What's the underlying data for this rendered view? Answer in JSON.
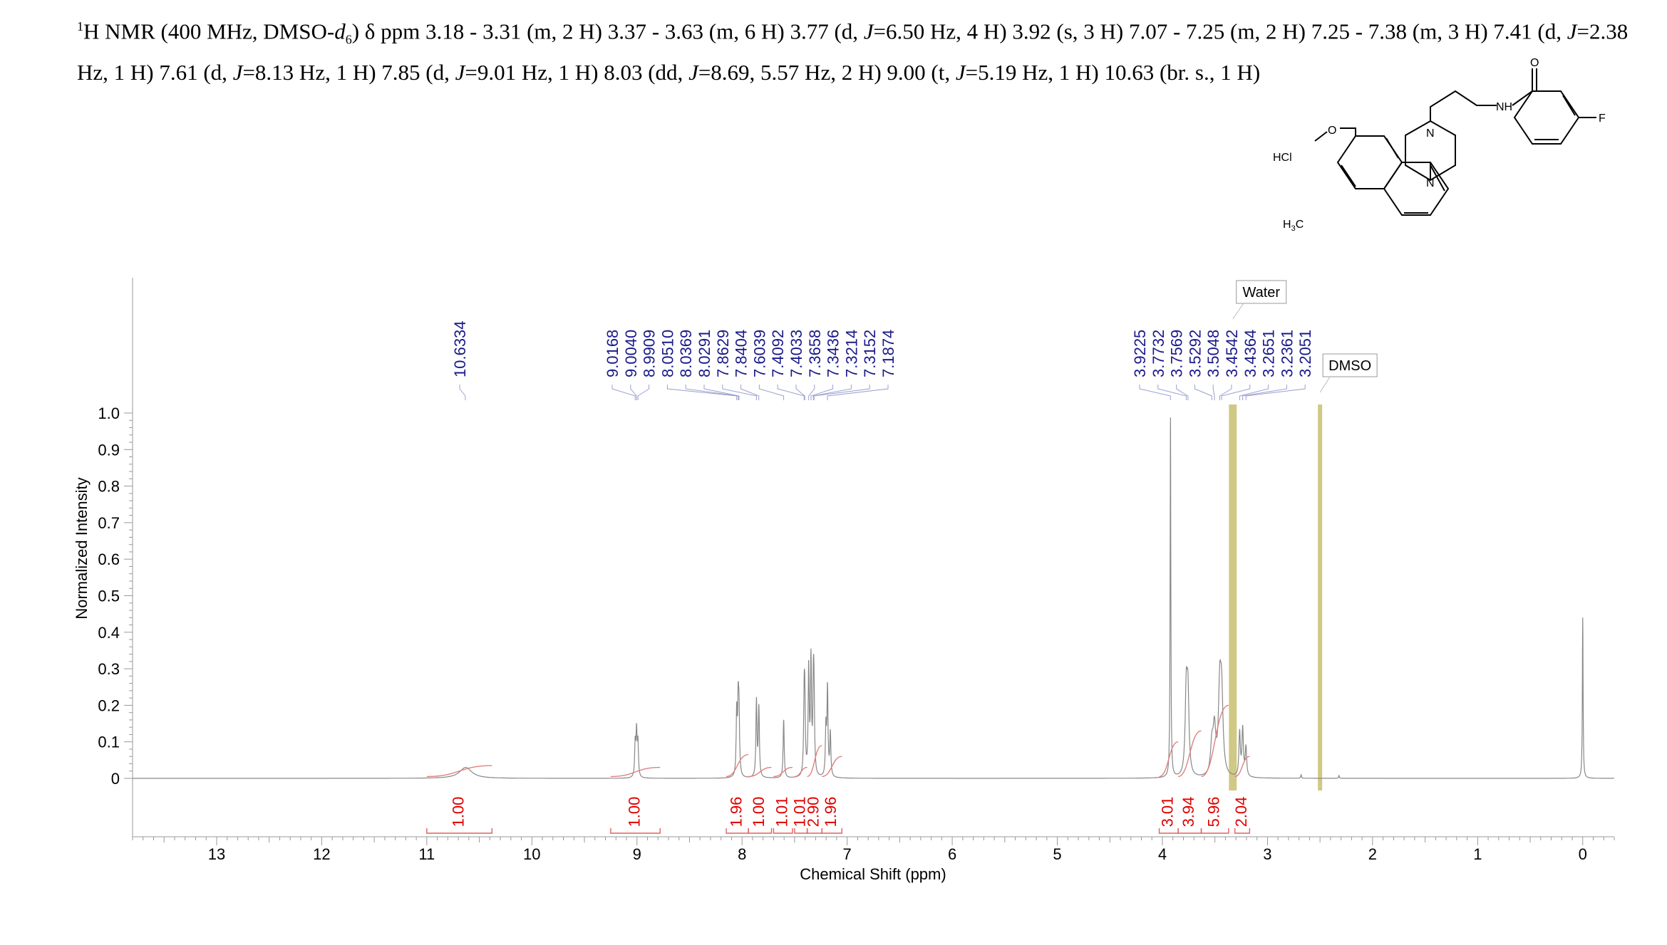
{
  "header": {
    "nucleus_mass": "1",
    "nucleus": "H NMR",
    "conditions": "(400 MHz, DMSO-",
    "solvent_d": "d",
    "solvent_sub": "6",
    "close": ")",
    "delta": "δ",
    "segments": [
      {
        "t": " ppm 3.18 - 3.31 (m, 2 H) 3.37 - 3.63 (m, 6 H) 3.77 (d, "
      },
      {
        "t": "J",
        "i": true
      },
      {
        "t": "=6.50 Hz, 4 H) 3.92 (s, 3 H) 7.07 - 7.25 (m, 2 H) 7.25 - 7.38 (m, 3 H) 7.41 (d, "
      },
      {
        "t": "J",
        "i": true
      },
      {
        "t": "=2.38 Hz, 1 H) 7.61 (d, "
      },
      {
        "t": "J",
        "i": true
      },
      {
        "t": "=8.13 Hz, 1 H) 7.85 (d, "
      },
      {
        "t": "J",
        "i": true
      },
      {
        "t": "=9.01 Hz, 1 H) 8.03 (dd, "
      },
      {
        "t": "J",
        "i": true
      },
      {
        "t": "=8.69, 5.57 Hz, 2 H) 9.00 (t, "
      },
      {
        "t": "J",
        "i": true
      },
      {
        "t": "=5.19 Hz, 1 H) 10.63 (br. s., 1 H)"
      }
    ]
  },
  "molecule": {
    "labels": {
      "nh": "NH",
      "o": "O",
      "f": "F",
      "n_top": "N",
      "n_bottom": "N",
      "hcl": "HCl",
      "o_methoxy": "O",
      "h3c": "H",
      "h3c_sub": "3",
      "h3c_c": "C"
    }
  },
  "chart_data": {
    "type": "line",
    "xlabel": "Chemical Shift (ppm)",
    "ylabel": "Normalized Intensity",
    "xlim": [
      13.8,
      -0.3
    ],
    "ylim": [
      -0.15,
      1.05
    ],
    "x_ticks": [
      13,
      12,
      11,
      10,
      9,
      8,
      7,
      6,
      5,
      4,
      3,
      2,
      1,
      0
    ],
    "y_ticks": [
      0,
      0.1,
      0.2,
      0.3,
      0.4,
      0.5,
      0.6,
      0.7,
      0.8,
      0.9,
      1.0
    ],
    "y_tick_labels": [
      "0",
      "0.1",
      "0.2",
      "0.3",
      "0.4",
      "0.5",
      "0.6",
      "0.7",
      "0.8",
      "0.9",
      "1.0"
    ],
    "peaks": [
      {
        "x": 10.63,
        "y": 0.03,
        "w": 0.07
      },
      {
        "x": 9.017,
        "y": 0.09,
        "w": 0.006
      },
      {
        "x": 9.004,
        "y": 0.12,
        "w": 0.006
      },
      {
        "x": 8.991,
        "y": 0.09,
        "w": 0.006
      },
      {
        "x": 8.051,
        "y": 0.17,
        "w": 0.006
      },
      {
        "x": 8.037,
        "y": 0.18,
        "w": 0.006
      },
      {
        "x": 8.029,
        "y": 0.16,
        "w": 0.006
      },
      {
        "x": 7.863,
        "y": 0.21,
        "w": 0.006
      },
      {
        "x": 7.84,
        "y": 0.19,
        "w": 0.006
      },
      {
        "x": 7.604,
        "y": 0.16,
        "w": 0.006
      },
      {
        "x": 7.409,
        "y": 0.19,
        "w": 0.006
      },
      {
        "x": 7.403,
        "y": 0.17,
        "w": 0.006
      },
      {
        "x": 7.366,
        "y": 0.29,
        "w": 0.006
      },
      {
        "x": 7.344,
        "y": 0.31,
        "w": 0.006
      },
      {
        "x": 7.321,
        "y": 0.22,
        "w": 0.006
      },
      {
        "x": 7.315,
        "y": 0.17,
        "w": 0.006
      },
      {
        "x": 7.202,
        "y": 0.13,
        "w": 0.006
      },
      {
        "x": 7.187,
        "y": 0.24,
        "w": 0.006
      },
      {
        "x": 7.16,
        "y": 0.12,
        "w": 0.006
      },
      {
        "x": 3.923,
        "y": 1.0,
        "w": 0.004
      },
      {
        "x": 3.773,
        "y": 0.22,
        "w": 0.012
      },
      {
        "x": 3.757,
        "y": 0.21,
        "w": 0.012
      },
      {
        "x": 3.529,
        "y": 0.08,
        "w": 0.015
      },
      {
        "x": 3.505,
        "y": 0.12,
        "w": 0.015
      },
      {
        "x": 3.454,
        "y": 0.22,
        "w": 0.015
      },
      {
        "x": 3.436,
        "y": 0.2,
        "w": 0.015
      },
      {
        "x": 3.265,
        "y": 0.12,
        "w": 0.008
      },
      {
        "x": 3.236,
        "y": 0.13,
        "w": 0.008
      },
      {
        "x": 3.205,
        "y": 0.08,
        "w": 0.008
      },
      {
        "x": 2.68,
        "y": 0.01,
        "w": 0.004
      },
      {
        "x": 2.32,
        "y": 0.008,
        "w": 0.004
      },
      {
        "x": 0.0,
        "y": 0.44,
        "w": 0.004
      }
    ],
    "peak_labels": [
      {
        "text": "10.6334",
        "x": 10.6334
      },
      {
        "text": "9.0168",
        "x": 9.0168
      },
      {
        "text": "9.0040",
        "x": 9.004
      },
      {
        "text": "8.9909",
        "x": 8.9909
      },
      {
        "text": "8.0510",
        "x": 8.051
      },
      {
        "text": "8.0369",
        "x": 8.0369
      },
      {
        "text": "8.0291",
        "x": 8.0291
      },
      {
        "text": "7.8629",
        "x": 7.8629
      },
      {
        "text": "7.8404",
        "x": 7.8404
      },
      {
        "text": "7.6039",
        "x": 7.6039
      },
      {
        "text": "7.4092",
        "x": 7.4092
      },
      {
        "text": "7.4033",
        "x": 7.4033
      },
      {
        "text": "7.3658",
        "x": 7.3658
      },
      {
        "text": "7.3436",
        "x": 7.3436
      },
      {
        "text": "7.3214",
        "x": 7.3214
      },
      {
        "text": "7.3152",
        "x": 7.3152
      },
      {
        "text": "7.1874",
        "x": 7.1874
      },
      {
        "text": "3.9225",
        "x": 3.9225
      },
      {
        "text": "3.7732",
        "x": 3.7732
      },
      {
        "text": "3.7569",
        "x": 3.7569
      },
      {
        "text": "3.5292",
        "x": 3.5292
      },
      {
        "text": "3.5048",
        "x": 3.5048
      },
      {
        "text": "3.4542",
        "x": 3.4542
      },
      {
        "text": "3.4364",
        "x": 3.4364
      },
      {
        "text": "3.2651",
        "x": 3.2651
      },
      {
        "text": "3.2361",
        "x": 3.2361
      },
      {
        "text": "3.2051",
        "x": 3.2051
      }
    ],
    "integrals": [
      {
        "label": "1.00",
        "from": 11.0,
        "to": 10.38,
        "height": 0.035
      },
      {
        "label": "1.00",
        "from": 9.25,
        "to": 8.78,
        "height": 0.03
      },
      {
        "label": "1.96",
        "from": 8.15,
        "to": 7.94,
        "height": 0.065
      },
      {
        "label": "1.00",
        "from": 7.94,
        "to": 7.72,
        "height": 0.03
      },
      {
        "label": "1.01",
        "from": 7.7,
        "to": 7.52,
        "height": 0.03
      },
      {
        "label": "1.01",
        "from": 7.5,
        "to": 7.38,
        "height": 0.03
      },
      {
        "label": "2.90",
        "from": 7.38,
        "to": 7.24,
        "height": 0.09
      },
      {
        "label": "1.96",
        "from": 7.24,
        "to": 7.05,
        "height": 0.06
      },
      {
        "label": "3.01",
        "from": 4.03,
        "to": 3.85,
        "height": 0.1
      },
      {
        "label": "3.94",
        "from": 3.85,
        "to": 3.63,
        "height": 0.13
      },
      {
        "label": "5.96",
        "from": 3.63,
        "to": 3.37,
        "height": 0.2
      },
      {
        "label": "2.04",
        "from": 3.31,
        "to": 3.17,
        "height": 0.06
      }
    ],
    "solvent_bands": [
      {
        "label": "Water",
        "x": 3.33
      },
      {
        "label": "DMSO",
        "x": 2.5
      }
    ]
  }
}
